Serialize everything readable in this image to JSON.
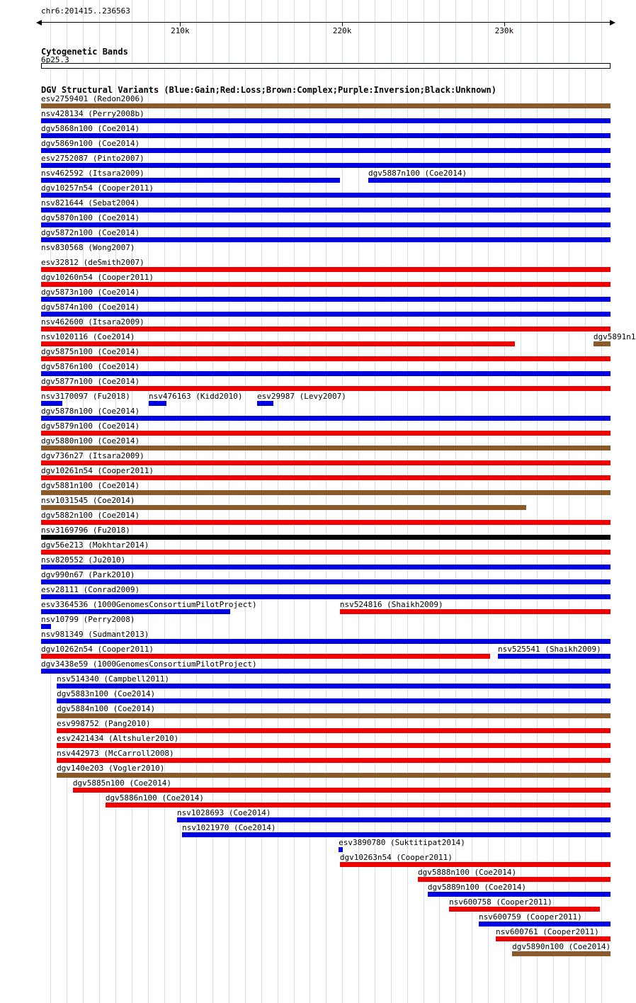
{
  "page": {
    "region_label": "chr6:201415..236563"
  },
  "ruler": {
    "start": 201415,
    "end": 236563,
    "grid_interval_bp": 1000,
    "ticks": [
      {
        "pos": 210000,
        "label": "210k"
      },
      {
        "pos": 220000,
        "label": "220k"
      },
      {
        "pos": 230000,
        "label": "230k"
      }
    ]
  },
  "cytoband": {
    "section_title": "Cytogenetic Bands",
    "band_name": "6p25.3"
  },
  "dgv_track": {
    "section_title": "DGV Structural Variants (Blue:Gain;Red:Loss;Brown:Complex;Purple:Inversion;Black:Unknown)"
  },
  "colors": {
    "gain_blue": "#0000E0",
    "loss_red": "#EE0000",
    "complex_brown": "#8B5A2B",
    "inversion_purple": "#800080",
    "unknown_black": "#000000",
    "grid": "#CCE0F5",
    "text": "#000000"
  },
  "chart_data": {
    "type": "bar",
    "title": "DGV Structural Variants",
    "x_range": [
      201415,
      236563
    ],
    "x_units": "bp (chr6)",
    "color_legend": {
      "blue": "Gain",
      "red": "Loss",
      "brown": "Complex",
      "purple": "Inversion",
      "black": "Unknown"
    },
    "rows": [
      [
        {
          "label": "esv2759401 (Redon2006)",
          "color": "brown",
          "start": 201415,
          "end": 236563
        }
      ],
      [
        {
          "label": "nsv428134 (Perry2008b)",
          "color": "blue",
          "start": 201415,
          "end": 236563
        }
      ],
      [
        {
          "label": "dgv5868n100 (Coe2014)",
          "color": "blue",
          "start": 201415,
          "end": 236563
        }
      ],
      [
        {
          "label": "dgv5869n100 (Coe2014)",
          "color": "blue",
          "start": 201415,
          "end": 236563
        }
      ],
      [
        {
          "label": "esv2752087 (Pinto2007)",
          "color": "blue",
          "start": 201415,
          "end": 236563
        }
      ],
      [
        {
          "label": "nsv462592 (Itsara2009)",
          "color": "blue",
          "start": 201415,
          "end": 219860
        },
        {
          "label": "dgv5887n100 (Coe2014)",
          "color": "blue",
          "start": 221610,
          "end": 236563
        }
      ],
      [
        {
          "label": "dgv10257n54 (Cooper2011)",
          "color": "blue",
          "start": 201415,
          "end": 236563
        }
      ],
      [
        {
          "label": "nsv821644 (Sebat2004)",
          "color": "blue",
          "start": 201415,
          "end": 236563
        }
      ],
      [
        {
          "label": "dgv5870n100 (Coe2014)",
          "color": "blue",
          "start": 201415,
          "end": 236563
        }
      ],
      [
        {
          "label": "dgv5872n100 (Coe2014)",
          "color": "blue",
          "start": 201415,
          "end": 236563
        }
      ],
      [
        {
          "label": "nsv830568 (Wong2007)",
          "color": "black",
          "start": null,
          "end": null
        }
      ],
      [
        {
          "label": "esv32812 (deSmith2007)",
          "color": "red",
          "start": 201415,
          "end": 236563
        }
      ],
      [
        {
          "label": "dgv10260n54 (Cooper2011)",
          "color": "red",
          "start": 201415,
          "end": 236563
        }
      ],
      [
        {
          "label": "dgv5873n100 (Coe2014)",
          "color": "blue",
          "start": 201415,
          "end": 236563
        }
      ],
      [
        {
          "label": "dgv5874n100 (Coe2014)",
          "color": "blue",
          "start": 201415,
          "end": 236563
        }
      ],
      [
        {
          "label": "nsv462600 (Itsara2009)",
          "color": "red",
          "start": 201415,
          "end": 236563
        }
      ],
      [
        {
          "label": "nsv1020116 (Coe2014)",
          "color": "red",
          "start": 201415,
          "end": 230660
        },
        {
          "label": "dgv5891n1",
          "color": "brown",
          "start": 235510,
          "end": 236563
        }
      ],
      [
        {
          "label": "dgv5875n100 (Coe2014)",
          "color": "red",
          "start": 201415,
          "end": 236563
        }
      ],
      [
        {
          "label": "dgv5876n100 (Coe2014)",
          "color": "blue",
          "start": 201415,
          "end": 236563
        }
      ],
      [
        {
          "label": "dgv5877n100 (Coe2014)",
          "color": "red",
          "start": 201415,
          "end": 236563
        }
      ],
      [
        {
          "label": "nsv3170097 (Fu2018)",
          "color": "blue",
          "start": 201415,
          "end": 202730
        },
        {
          "label": "nsv476163 (Kidd2010)",
          "color": "blue",
          "start": 208060,
          "end": 209150
        },
        {
          "label": "esv29987 (Levy2007)",
          "color": "blue",
          "start": 214750,
          "end": 215760
        }
      ],
      [
        {
          "label": "dgv5878n100 (Coe2014)",
          "color": "blue",
          "start": 201415,
          "end": 236563
        }
      ],
      [
        {
          "label": "dgv5879n100 (Coe2014)",
          "color": "red",
          "start": 201415,
          "end": 236563
        }
      ],
      [
        {
          "label": "dgv5880n100 (Coe2014)",
          "color": "brown",
          "start": 201415,
          "end": 236563
        }
      ],
      [
        {
          "label": "dgv736n27 (Itsara2009)",
          "color": "red",
          "start": 201415,
          "end": 236563
        }
      ],
      [
        {
          "label": "dgv10261n54 (Cooper2011)",
          "color": "red",
          "start": 201415,
          "end": 236563
        }
      ],
      [
        {
          "label": "dgv5881n100 (Coe2014)",
          "color": "brown",
          "start": 201415,
          "end": 236563
        }
      ],
      [
        {
          "label": "nsv1031545 (Coe2014)",
          "color": "brown",
          "start": 201415,
          "end": 231360
        }
      ],
      [
        {
          "label": "dgv5882n100 (Coe2014)",
          "color": "red",
          "start": 201415,
          "end": 236563
        }
      ],
      [
        {
          "label": "nsv3169796 (Fu2018)",
          "color": "black",
          "start": 201415,
          "end": 236563
        }
      ],
      [
        {
          "label": "dgv56e213 (Mokhtar2014)",
          "color": "red",
          "start": 201415,
          "end": 236563
        }
      ],
      [
        {
          "label": "nsv820552 (Ju2010)",
          "color": "blue",
          "start": 201415,
          "end": 236563
        }
      ],
      [
        {
          "label": "dgv990n67 (Park2010)",
          "color": "blue",
          "start": 201415,
          "end": 236563
        }
      ],
      [
        {
          "label": "esv28111 (Conrad2009)",
          "color": "blue",
          "start": 201415,
          "end": 236563
        }
      ],
      [
        {
          "label": "esv3364536 (1000GenomesConsortiumPilotProject)",
          "color": "blue",
          "start": 201415,
          "end": 213090
        },
        {
          "label": "nsv524816 (Shaikh2009)",
          "color": "red",
          "start": 219860,
          "end": 236563
        }
      ],
      [
        {
          "label": "nsv10799 (Perry2008)",
          "color": "blue",
          "start": 201415,
          "end": 202030
        }
      ],
      [
        {
          "label": "nsv981349 (Sudmant2013)",
          "color": "blue",
          "start": 201415,
          "end": 236563
        }
      ],
      [
        {
          "label": "dgv10262n54 (Cooper2011)",
          "color": "red",
          "start": 201415,
          "end": 229130
        },
        {
          "label": "nsv525541 (Shaikh2009)",
          "color": "blue",
          "start": 229610,
          "end": 236563
        }
      ],
      [
        {
          "label": "dgv3438e59 (1000GenomesConsortiumPilotProject)",
          "color": "blue",
          "start": 201415,
          "end": 236563
        }
      ],
      [
        {
          "label": "nsv514340 (Campbell2011)",
          "color": "blue",
          "start": 202380,
          "end": 236563
        }
      ],
      [
        {
          "label": "dgv5883n100 (Coe2014)",
          "color": "blue",
          "start": 202380,
          "end": 236563
        }
      ],
      [
        {
          "label": "dgv5884n100 (Coe2014)",
          "color": "brown",
          "start": 202380,
          "end": 236563
        }
      ],
      [
        {
          "label": "esv998752 (Pang2010)",
          "color": "red",
          "start": 202380,
          "end": 236563
        }
      ],
      [
        {
          "label": "esv2421434 (Altshuler2010)",
          "color": "red",
          "start": 202380,
          "end": 236563
        }
      ],
      [
        {
          "label": "nsv442973 (McCarroll2008)",
          "color": "red",
          "start": 202380,
          "end": 236563
        }
      ],
      [
        {
          "label": "dgv140e203 (Vogler2010)",
          "color": "brown",
          "start": 202380,
          "end": 236563
        }
      ],
      [
        {
          "label": "dgv5885n100 (Coe2014)",
          "color": "red",
          "start": 203380,
          "end": 236563
        }
      ],
      [
        {
          "label": "dgv5886n100 (Coe2014)",
          "color": "red",
          "start": 205390,
          "end": 236563
        }
      ],
      [
        {
          "label": "nsv1028693 (Coe2014)",
          "color": "blue",
          "start": 209810,
          "end": 236563
        }
      ],
      [
        {
          "label": "nsv1021970 (Coe2014)",
          "color": "blue",
          "start": 210120,
          "end": 236563
        }
      ],
      [
        {
          "label": "esv3890780 (Suktitipat2014)",
          "color": "blue",
          "start": 219780,
          "end": 220040
        }
      ],
      [
        {
          "label": "dgv10263n54 (Cooper2011)",
          "color": "red",
          "start": 219860,
          "end": 236563
        }
      ],
      [
        {
          "label": "dgv5888n100 (Coe2014)",
          "color": "red",
          "start": 224670,
          "end": 236563
        }
      ],
      [
        {
          "label": "dgv5889n100 (Coe2014)",
          "color": "blue",
          "start": 225280,
          "end": 236563
        }
      ],
      [
        {
          "label": "nsv600758 (Cooper2011)",
          "color": "red",
          "start": 226600,
          "end": 235900
        }
      ],
      [
        {
          "label": "nsv600759 (Cooper2011)",
          "color": "blue",
          "start": 228430,
          "end": 236563
        }
      ],
      [
        {
          "label": "nsv600761 (Cooper2011)",
          "color": "red",
          "start": 229480,
          "end": 236563
        }
      ],
      [
        {
          "label": "dgv5890n100 (Coe2014)",
          "color": "brown",
          "start": 230490,
          "end": 236563
        }
      ]
    ]
  }
}
